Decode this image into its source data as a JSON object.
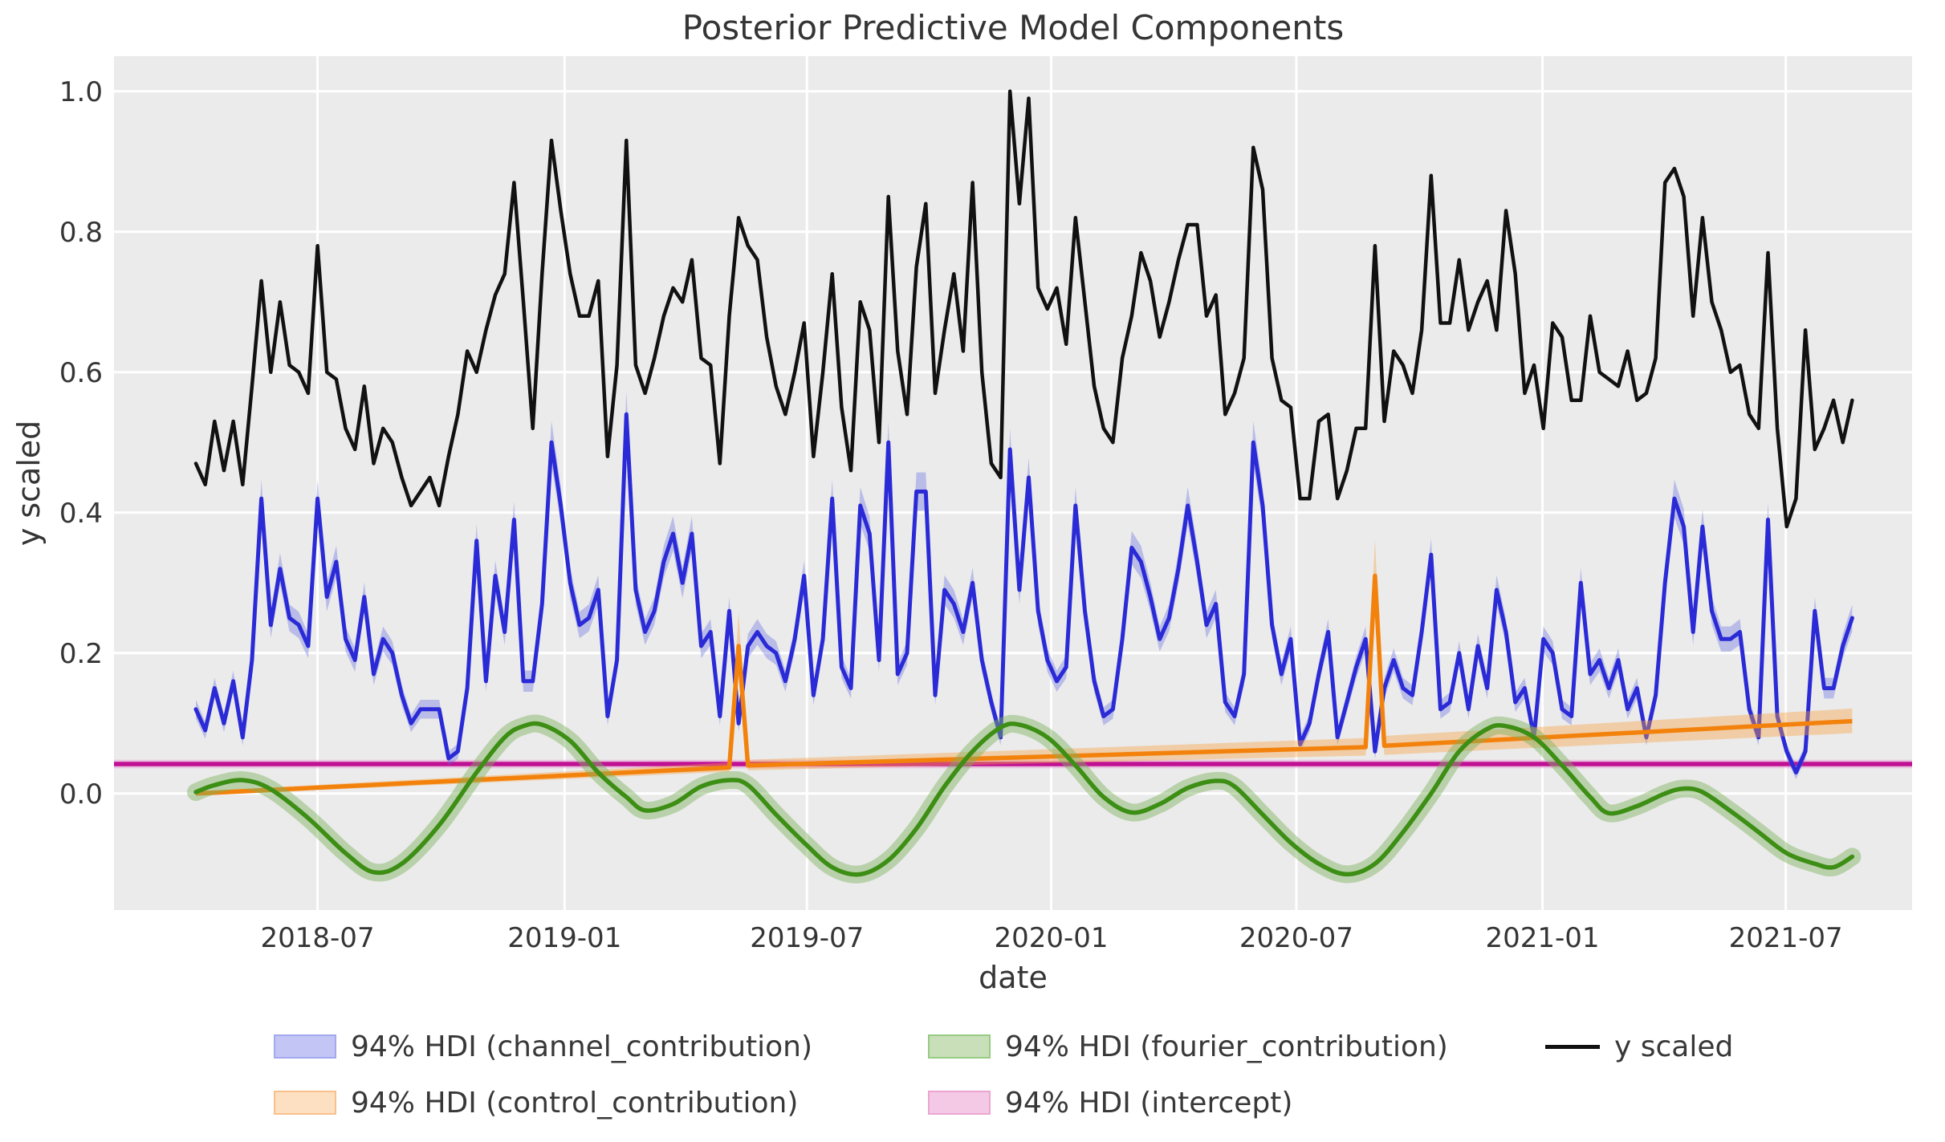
{
  "chart_data": {
    "type": "line",
    "title": "Posterior Predictive Model Components",
    "xlabel": "date",
    "ylabel": "y scaled",
    "plot_background": "#ebebeb",
    "grid_color": "#ffffff",
    "grid": true,
    "ylim": [
      -0.166,
      1.05
    ],
    "x_domain_weeks": [
      -8.75,
      183.4
    ],
    "start_date": "2018-04-01",
    "sampling": "weekly",
    "y_ticks": [
      0.0,
      0.2,
      0.4,
      0.6,
      0.8,
      1.0
    ],
    "x_ticks": [
      {
        "week": 13.0,
        "label": "2018-07"
      },
      {
        "week": 39.4,
        "label": "2019-01"
      },
      {
        "week": 65.3,
        "label": "2019-07"
      },
      {
        "week": 91.4,
        "label": "2020-01"
      },
      {
        "week": 117.6,
        "label": "2020-07"
      },
      {
        "week": 143.9,
        "label": "2021-01"
      },
      {
        "week": 169.9,
        "label": "2021-07"
      }
    ],
    "series": {
      "y_scaled": {
        "name": "y scaled",
        "color": "#111111",
        "width": 4.5,
        "values": [
          0.47,
          0.44,
          0.53,
          0.46,
          0.53,
          0.44,
          0.58,
          0.73,
          0.6,
          0.7,
          0.61,
          0.6,
          0.57,
          0.78,
          0.6,
          0.59,
          0.52,
          0.49,
          0.58,
          0.47,
          0.52,
          0.5,
          0.45,
          0.41,
          0.43,
          0.45,
          0.41,
          0.48,
          0.54,
          0.63,
          0.6,
          0.66,
          0.71,
          0.74,
          0.87,
          0.7,
          0.52,
          0.74,
          0.93,
          0.83,
          0.74,
          0.68,
          0.68,
          0.73,
          0.48,
          0.61,
          0.93,
          0.61,
          0.57,
          0.62,
          0.68,
          0.72,
          0.7,
          0.76,
          0.62,
          0.61,
          0.47,
          0.68,
          0.82,
          0.78,
          0.76,
          0.65,
          0.58,
          0.54,
          0.6,
          0.67,
          0.48,
          0.6,
          0.74,
          0.55,
          0.46,
          0.7,
          0.66,
          0.5,
          0.85,
          0.63,
          0.54,
          0.75,
          0.84,
          0.57,
          0.66,
          0.74,
          0.63,
          0.87,
          0.6,
          0.47,
          0.45,
          1.0,
          0.84,
          0.99,
          0.72,
          0.69,
          0.72,
          0.64,
          0.82,
          0.7,
          0.58,
          0.52,
          0.5,
          0.62,
          0.68,
          0.77,
          0.73,
          0.65,
          0.7,
          0.76,
          0.81,
          0.81,
          0.68,
          0.71,
          0.54,
          0.57,
          0.62,
          0.92,
          0.86,
          0.62,
          0.56,
          0.55,
          0.42,
          0.42,
          0.53,
          0.54,
          0.42,
          0.46,
          0.52,
          0.52,
          0.78,
          0.53,
          0.63,
          0.61,
          0.57,
          0.66,
          0.88,
          0.67,
          0.67,
          0.76,
          0.66,
          0.7,
          0.73,
          0.66,
          0.83,
          0.74,
          0.57,
          0.61,
          0.52,
          0.67,
          0.65,
          0.56,
          0.56,
          0.68,
          0.6,
          0.59,
          0.58,
          0.63,
          0.56,
          0.57,
          0.62,
          0.87,
          0.89,
          0.85,
          0.68,
          0.82,
          0.7,
          0.66,
          0.6,
          0.61,
          0.54,
          0.52,
          0.77,
          0.52,
          0.38,
          0.42,
          0.66,
          0.49,
          0.52,
          0.56,
          0.5,
          0.56
        ]
      },
      "channel_contribution": {
        "name": "94% HDI (channel_contribution)",
        "color": "#2a2ad6",
        "width": 5,
        "band_color": "rgba(95,100,225,0.35)",
        "band_rule": {
          "base": 0.008,
          "scale": 0.045
        },
        "values": [
          0.12,
          0.09,
          0.15,
          0.1,
          0.16,
          0.08,
          0.19,
          0.42,
          0.24,
          0.32,
          0.25,
          0.24,
          0.21,
          0.42,
          0.28,
          0.33,
          0.22,
          0.19,
          0.28,
          0.17,
          0.22,
          0.2,
          0.14,
          0.1,
          0.12,
          0.12,
          0.12,
          0.05,
          0.06,
          0.15,
          0.36,
          0.16,
          0.31,
          0.23,
          0.39,
          0.16,
          0.16,
          0.27,
          0.5,
          0.41,
          0.3,
          0.24,
          0.25,
          0.29,
          0.11,
          0.19,
          0.54,
          0.29,
          0.23,
          0.26,
          0.33,
          0.37,
          0.3,
          0.37,
          0.21,
          0.23,
          0.11,
          0.26,
          0.1,
          0.21,
          0.23,
          0.21,
          0.2,
          0.16,
          0.22,
          0.31,
          0.14,
          0.22,
          0.42,
          0.18,
          0.15,
          0.41,
          0.37,
          0.19,
          0.5,
          0.17,
          0.2,
          0.43,
          0.43,
          0.14,
          0.29,
          0.27,
          0.23,
          0.3,
          0.19,
          0.13,
          0.08,
          0.49,
          0.29,
          0.45,
          0.26,
          0.19,
          0.16,
          0.18,
          0.41,
          0.26,
          0.16,
          0.11,
          0.12,
          0.22,
          0.35,
          0.33,
          0.28,
          0.22,
          0.25,
          0.32,
          0.41,
          0.33,
          0.24,
          0.27,
          0.13,
          0.11,
          0.17,
          0.5,
          0.41,
          0.24,
          0.17,
          0.22,
          0.07,
          0.1,
          0.17,
          0.23,
          0.08,
          0.13,
          0.18,
          0.22,
          0.06,
          0.15,
          0.19,
          0.15,
          0.14,
          0.23,
          0.34,
          0.12,
          0.13,
          0.2,
          0.12,
          0.21,
          0.15,
          0.29,
          0.23,
          0.13,
          0.15,
          0.08,
          0.22,
          0.2,
          0.12,
          0.11,
          0.3,
          0.17,
          0.19,
          0.15,
          0.19,
          0.12,
          0.15,
          0.08,
          0.14,
          0.3,
          0.42,
          0.38,
          0.23,
          0.38,
          0.26,
          0.22,
          0.22,
          0.23,
          0.12,
          0.08,
          0.39,
          0.11,
          0.06,
          0.03,
          0.06,
          0.26,
          0.15,
          0.15,
          0.21,
          0.25
        ]
      },
      "control_contribution": {
        "name": "94% HDI (control_contribution)",
        "color": "#f3820d",
        "width": 5.5,
        "band_color": "rgba(247,160,62,0.4)",
        "anchors_w_mid_lo_hi": [
          [
            0,
            0.0,
            -0.003,
            0.003
          ],
          [
            57,
            0.037,
            0.031,
            0.044
          ],
          [
            58,
            0.21,
            0.165,
            0.258
          ],
          [
            59,
            0.04,
            0.033,
            0.048
          ],
          [
            125,
            0.066,
            0.054,
            0.079
          ],
          [
            126,
            0.31,
            0.252,
            0.362
          ],
          [
            127,
            0.068,
            0.055,
            0.082
          ],
          [
            177,
            0.103,
            0.086,
            0.121
          ]
        ]
      },
      "fourier_contribution": {
        "name": "94% HDI (fourier_contribution)",
        "color": "#3c8e14",
        "width": 5.5,
        "band_color": "rgba(125,178,92,0.45)",
        "band_half_width": 0.0095,
        "anchors_w_v": [
          [
            0,
            0.002
          ],
          [
            2,
            0.012
          ],
          [
            5,
            0.019
          ],
          [
            8,
            0.006
          ],
          [
            12,
            -0.035
          ],
          [
            16,
            -0.085
          ],
          [
            19,
            -0.112
          ],
          [
            22,
            -0.1
          ],
          [
            26,
            -0.045
          ],
          [
            30,
            0.03
          ],
          [
            33,
            0.08
          ],
          [
            35,
            0.096
          ],
          [
            37,
            0.098
          ],
          [
            40,
            0.075
          ],
          [
            43,
            0.03
          ],
          [
            46,
            -0.005
          ],
          [
            48,
            -0.024
          ],
          [
            51,
            -0.015
          ],
          [
            54,
            0.01
          ],
          [
            57,
            0.019
          ],
          [
            59,
            0.012
          ],
          [
            62,
            -0.03
          ],
          [
            65,
            -0.07
          ],
          [
            68,
            -0.105
          ],
          [
            71,
            -0.115
          ],
          [
            74,
            -0.095
          ],
          [
            77,
            -0.05
          ],
          [
            80,
            0.01
          ],
          [
            83,
            0.06
          ],
          [
            86,
            0.094
          ],
          [
            88,
            0.098
          ],
          [
            91,
            0.08
          ],
          [
            94,
            0.04
          ],
          [
            97,
            -0.005
          ],
          [
            100,
            -0.027
          ],
          [
            103,
            -0.015
          ],
          [
            106,
            0.008
          ],
          [
            109,
            0.018
          ],
          [
            111,
            0.01
          ],
          [
            114,
            -0.03
          ],
          [
            117,
            -0.07
          ],
          [
            120,
            -0.1
          ],
          [
            123,
            -0.115
          ],
          [
            126,
            -0.1
          ],
          [
            129,
            -0.055
          ],
          [
            132,
            0.0
          ],
          [
            135,
            0.06
          ],
          [
            138,
            0.092
          ],
          [
            140,
            0.096
          ],
          [
            143,
            0.08
          ],
          [
            146,
            0.04
          ],
          [
            149,
            -0.005
          ],
          [
            151,
            -0.028
          ],
          [
            154,
            -0.018
          ],
          [
            157,
            0.0
          ],
          [
            159,
            0.007
          ],
          [
            161,
            0.002
          ],
          [
            164,
            -0.025
          ],
          [
            167,
            -0.055
          ],
          [
            170,
            -0.085
          ],
          [
            173,
            -0.1
          ],
          [
            175,
            -0.105
          ],
          [
            177,
            -0.09
          ]
        ]
      },
      "intercept": {
        "name": "94% HDI (intercept)",
        "color": "#c01194",
        "width": 5.5,
        "band_color": "rgba(233,152,211,0.5)",
        "value": 0.042,
        "band_half_width": 0.006,
        "span": "full_axis"
      }
    },
    "legend": [
      {
        "label": "94% HDI (channel_contribution)",
        "fill": "#c3c6f5",
        "edge": "#a3a8ef",
        "type": "patch"
      },
      {
        "label": "94% HDI (control_contribution)",
        "fill": "#fde0c2",
        "edge": "#f8c08a",
        "type": "patch"
      },
      {
        "label": "94% HDI (fourier_contribution)",
        "fill": "#c9dfb9",
        "edge": "#97cb84",
        "type": "patch"
      },
      {
        "label": "94% HDI (intercept)",
        "fill": "#f4c9e6",
        "edge": "#eba4d1",
        "type": "patch"
      },
      {
        "label": "y scaled",
        "color": "#111111",
        "type": "line"
      }
    ]
  }
}
